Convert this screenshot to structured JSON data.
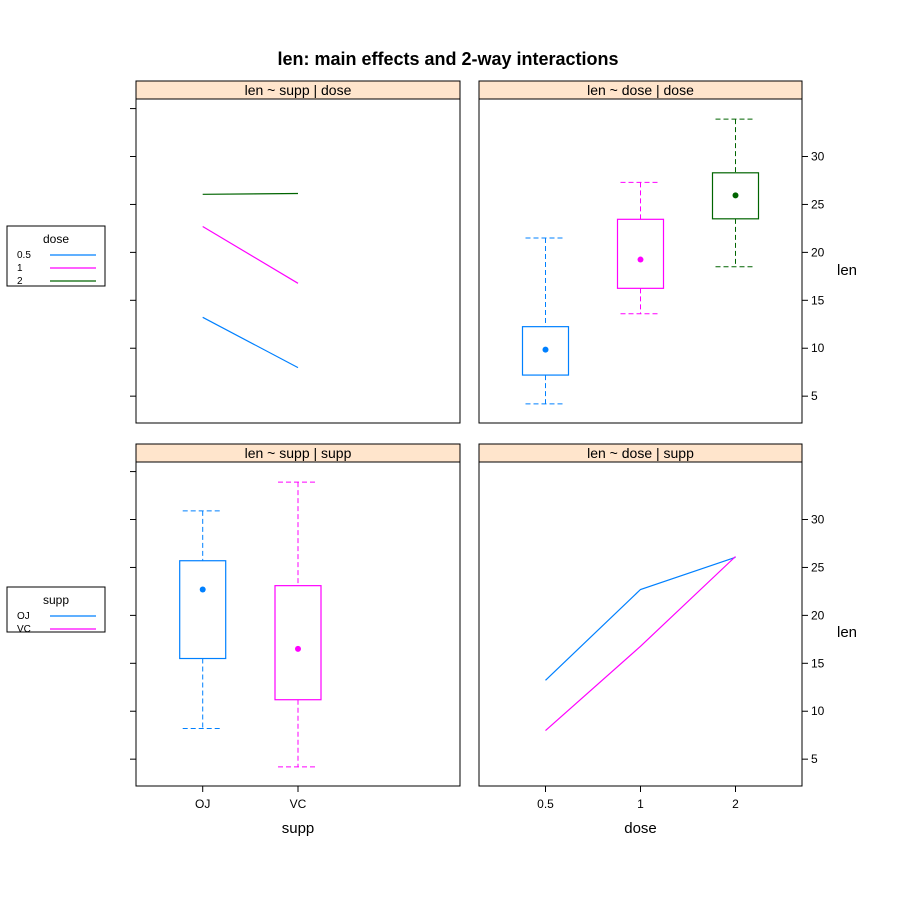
{
  "chart_data": {
    "title": "len: main effects and 2-way interactions",
    "y_axis": {
      "label": "len",
      "ticks": [
        5,
        10,
        15,
        20,
        25,
        30
      ],
      "range": [
        2.2,
        36
      ]
    },
    "colors": {
      "0.5": "#0080ff",
      "1": "#ff00ff",
      "2": "#006400",
      "OJ": "#0080ff",
      "VC": "#ff00ff"
    },
    "strip_color": "#ffe5cc",
    "panels": [
      {
        "strip": "len ~ supp | dose",
        "type": "line",
        "x_type": "categorical",
        "categories": [
          "OJ",
          "VC"
        ],
        "series": [
          {
            "name": "0.5",
            "values": [
              13.23,
              7.98
            ]
          },
          {
            "name": "1",
            "values": [
              22.7,
              16.77
            ]
          },
          {
            "name": "2",
            "values": [
              26.06,
              26.14
            ]
          }
        ]
      },
      {
        "strip": "len ~ dose | dose",
        "type": "box",
        "x_type": "numeric",
        "categories": [
          "0.5",
          "1",
          "2"
        ],
        "boxes": [
          {
            "name": "0.5",
            "min": 4.2,
            "q1": 7.2,
            "median": 9.85,
            "q3": 12.25,
            "max": 21.5,
            "mean": 10.61
          },
          {
            "name": "1",
            "min": 13.6,
            "q1": 16.25,
            "median": 19.25,
            "q3": 23.45,
            "max": 27.3,
            "mean": 19.74
          },
          {
            "name": "2",
            "min": 18.5,
            "q1": 23.5,
            "median": 25.95,
            "q3": 28.3,
            "max": 33.9,
            "mean": 26.1
          }
        ]
      },
      {
        "strip": "len ~ supp | supp",
        "type": "box",
        "x_type": "categorical",
        "categories": [
          "OJ",
          "VC"
        ],
        "boxes": [
          {
            "name": "OJ",
            "min": 8.2,
            "q1": 15.5,
            "median": 22.7,
            "q3": 25.7,
            "max": 30.9,
            "mean": 20.66
          },
          {
            "name": "VC",
            "min": 4.2,
            "q1": 11.2,
            "median": 16.5,
            "q3": 23.1,
            "max": 33.9,
            "mean": 16.96
          }
        ]
      },
      {
        "strip": "len ~ dose | supp",
        "type": "line",
        "x_type": "numeric",
        "categories": [
          "0.5",
          "1",
          "2"
        ],
        "series": [
          {
            "name": "OJ",
            "values": [
              13.23,
              22.7,
              26.06
            ]
          },
          {
            "name": "VC",
            "values": [
              7.98,
              16.77,
              26.14
            ]
          }
        ]
      }
    ],
    "x_axes": [
      {
        "label": "supp",
        "ticks": [
          "OJ",
          "VC"
        ]
      },
      {
        "label": "dose",
        "ticks": [
          "0.5",
          "1",
          "2"
        ]
      }
    ],
    "legends": [
      {
        "title": "dose",
        "entries": [
          "0.5",
          "1",
          "2"
        ]
      },
      {
        "title": "supp",
        "entries": [
          "OJ",
          "VC"
        ]
      }
    ]
  }
}
